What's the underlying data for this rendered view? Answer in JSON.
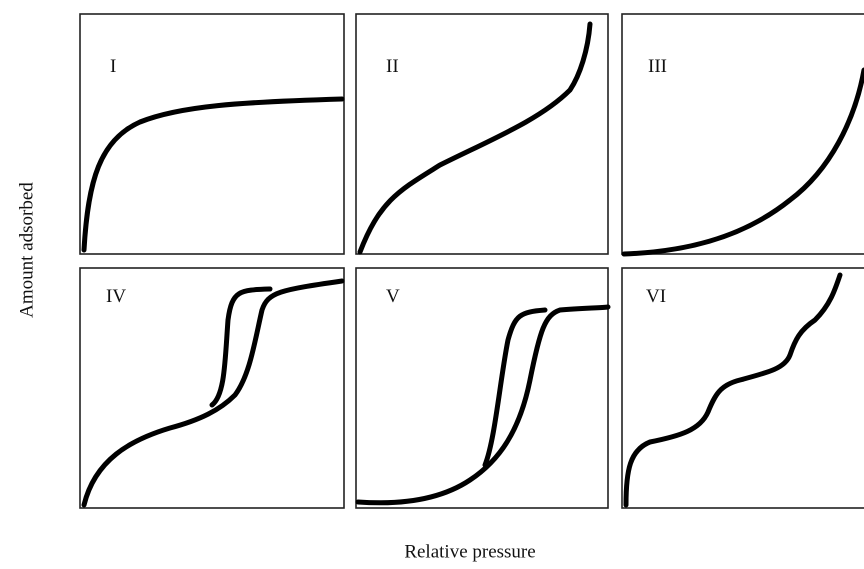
{
  "y_axis_label": "Amount adsorbed",
  "x_axis_label": "Relative pressure",
  "panels": [
    {
      "label": "I"
    },
    {
      "label": "II"
    },
    {
      "label": "III"
    },
    {
      "label": "IV"
    },
    {
      "label": "V"
    },
    {
      "label": "VI"
    }
  ]
}
